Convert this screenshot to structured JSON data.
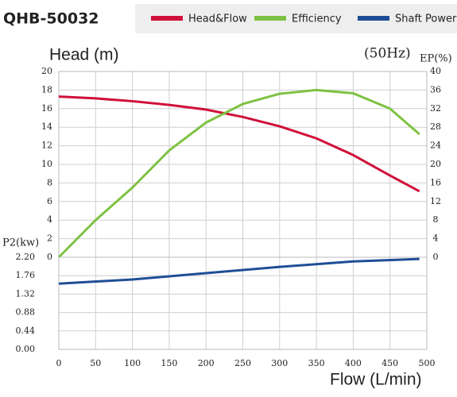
{
  "chart_data": [
    {
      "type": "line",
      "title": "QHB-50032",
      "annotation": "(50Hz)",
      "ylabel": "Head (m)",
      "y2label": "EP(%)",
      "x": [
        0,
        50,
        100,
        150,
        200,
        250,
        300,
        350,
        400,
        450,
        490
      ],
      "series": [
        {
          "name": "Head&Flow",
          "color": "#d0103a",
          "values": [
            17.3,
            17.1,
            16.8,
            16.4,
            15.9,
            15.1,
            14.1,
            12.8,
            11.0,
            8.8,
            7.1
          ]
        },
        {
          "name": "Efficiency",
          "color": "#7dc242",
          "axis": "y2",
          "values": [
            0,
            8,
            15,
            23,
            29,
            33,
            35.2,
            36,
            35.3,
            32,
            26.5
          ]
        }
      ],
      "xlim": [
        0,
        500
      ],
      "xticks": [
        0,
        50,
        100,
        150,
        200,
        250,
        300,
        350,
        400,
        450,
        500
      ],
      "ylim": [
        0,
        20
      ],
      "yticks": [
        0,
        2,
        4,
        6,
        8,
        10,
        12,
        14,
        16,
        18,
        20
      ],
      "y2lim": [
        0,
        40
      ],
      "y2ticks": [
        0,
        4,
        8,
        12,
        16,
        20,
        24,
        28,
        32,
        36,
        40
      ],
      "grid": true
    },
    {
      "type": "line",
      "ylabel": "P2(kw)",
      "xlabel": "Flow (L/min)",
      "x": [
        0,
        100,
        200,
        300,
        400,
        490
      ],
      "series": [
        {
          "name": "Shaft Power",
          "color": "#1f4e96",
          "values": [
            1.57,
            1.67,
            1.82,
            1.97,
            2.1,
            2.16
          ]
        }
      ],
      "xlim": [
        0,
        500
      ],
      "xticks": [
        0,
        50,
        100,
        150,
        200,
        250,
        300,
        350,
        400,
        450,
        500
      ],
      "ylim": [
        0,
        2.2
      ],
      "yticks": [
        {
          "value": 0,
          "label": "0.00"
        },
        {
          "value": 0.44,
          "label": "0.44"
        },
        {
          "value": 0.88,
          "label": "0.88"
        },
        {
          "value": 1.32,
          "label": "1.32"
        },
        {
          "value": 1.76,
          "label": "1.76"
        },
        {
          "value": 2.2,
          "label": "2.20"
        }
      ],
      "grid": true
    }
  ]
}
